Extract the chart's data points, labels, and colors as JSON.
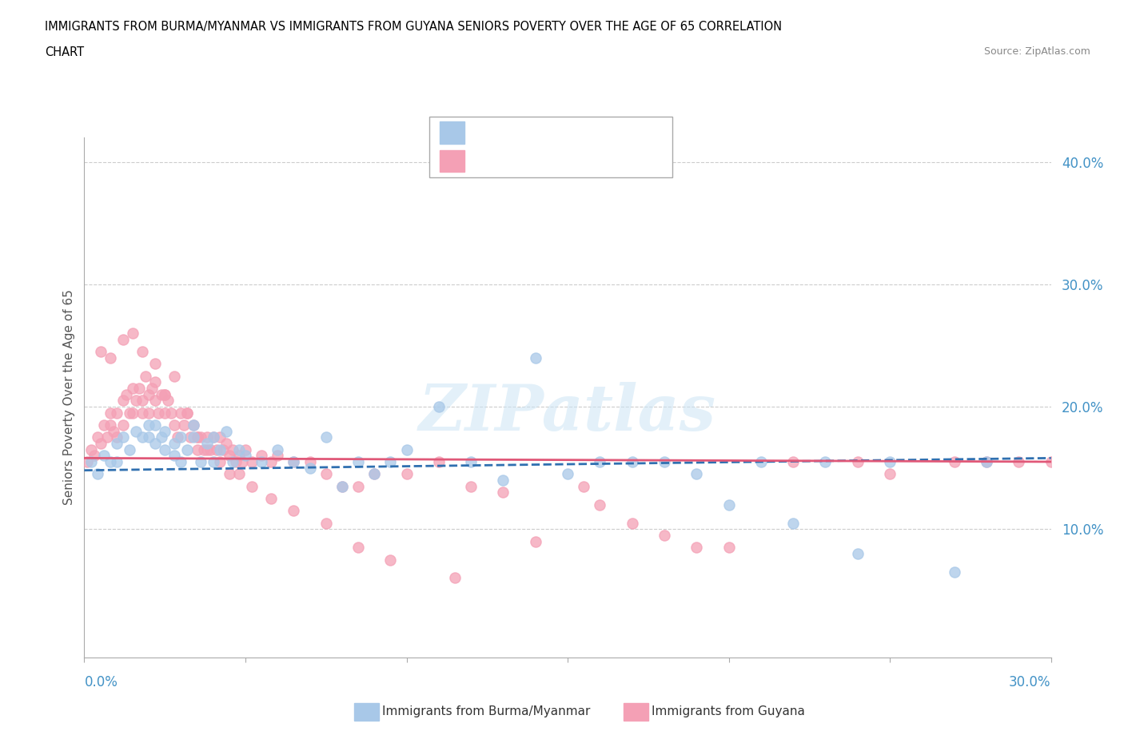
{
  "title_line1": "IMMIGRANTS FROM BURMA/MYANMAR VS IMMIGRANTS FROM GUYANA SENIORS POVERTY OVER THE AGE OF 65 CORRELATION",
  "title_line2": "CHART",
  "source": "Source: ZipAtlas.com",
  "ylabel": "Seniors Poverty Over the Age of 65",
  "color_blue": "#a8c8e8",
  "color_pink": "#f4a0b5",
  "trend_blue": "#3070b0",
  "trend_pink": "#e05878",
  "watermark": "ZIPatlas",
  "xlim": [
    0.0,
    0.3
  ],
  "ylim": [
    -0.005,
    0.42
  ],
  "scatter_blue_x": [
    0.002,
    0.004,
    0.006,
    0.008,
    0.01,
    0.01,
    0.012,
    0.014,
    0.016,
    0.018,
    0.02,
    0.02,
    0.022,
    0.022,
    0.024,
    0.025,
    0.025,
    0.028,
    0.028,
    0.03,
    0.03,
    0.032,
    0.034,
    0.034,
    0.036,
    0.038,
    0.04,
    0.04,
    0.042,
    0.044,
    0.046,
    0.048,
    0.05,
    0.055,
    0.06,
    0.065,
    0.07,
    0.075,
    0.08,
    0.085,
    0.09,
    0.095,
    0.1,
    0.11,
    0.12,
    0.13,
    0.14,
    0.15,
    0.16,
    0.17,
    0.18,
    0.19,
    0.2,
    0.21,
    0.22,
    0.23,
    0.24,
    0.25,
    0.27,
    0.28
  ],
  "scatter_blue_y": [
    0.155,
    0.145,
    0.16,
    0.155,
    0.17,
    0.155,
    0.175,
    0.165,
    0.18,
    0.175,
    0.175,
    0.185,
    0.17,
    0.185,
    0.175,
    0.165,
    0.18,
    0.16,
    0.17,
    0.155,
    0.175,
    0.165,
    0.175,
    0.185,
    0.155,
    0.17,
    0.155,
    0.175,
    0.165,
    0.18,
    0.155,
    0.165,
    0.16,
    0.155,
    0.165,
    0.155,
    0.15,
    0.175,
    0.135,
    0.155,
    0.145,
    0.155,
    0.165,
    0.2,
    0.155,
    0.14,
    0.24,
    0.145,
    0.155,
    0.155,
    0.155,
    0.145,
    0.12,
    0.155,
    0.105,
    0.155,
    0.08,
    0.155,
    0.065,
    0.155
  ],
  "scatter_pink_x": [
    0.001,
    0.002,
    0.003,
    0.004,
    0.005,
    0.006,
    0.007,
    0.008,
    0.008,
    0.009,
    0.01,
    0.01,
    0.012,
    0.012,
    0.013,
    0.014,
    0.015,
    0.015,
    0.016,
    0.017,
    0.018,
    0.018,
    0.019,
    0.02,
    0.02,
    0.021,
    0.022,
    0.022,
    0.023,
    0.024,
    0.025,
    0.025,
    0.026,
    0.027,
    0.028,
    0.029,
    0.03,
    0.031,
    0.032,
    0.033,
    0.034,
    0.035,
    0.035,
    0.036,
    0.037,
    0.038,
    0.039,
    0.04,
    0.041,
    0.042,
    0.043,
    0.044,
    0.045,
    0.046,
    0.047,
    0.048,
    0.049,
    0.05,
    0.052,
    0.055,
    0.058,
    0.06,
    0.065,
    0.07,
    0.075,
    0.08,
    0.085,
    0.09,
    0.1,
    0.11,
    0.12,
    0.13,
    0.14,
    0.155,
    0.16,
    0.17,
    0.18,
    0.19,
    0.2,
    0.22,
    0.24,
    0.25,
    0.27,
    0.28,
    0.29,
    0.3,
    0.005,
    0.008,
    0.012,
    0.015,
    0.018,
    0.022,
    0.025,
    0.028,
    0.032,
    0.035,
    0.038,
    0.042,
    0.045,
    0.048,
    0.052,
    0.058,
    0.065,
    0.075,
    0.085,
    0.095,
    0.115
  ],
  "scatter_pink_y": [
    0.155,
    0.165,
    0.16,
    0.175,
    0.17,
    0.185,
    0.175,
    0.195,
    0.185,
    0.18,
    0.195,
    0.175,
    0.205,
    0.185,
    0.21,
    0.195,
    0.215,
    0.195,
    0.205,
    0.215,
    0.195,
    0.205,
    0.225,
    0.21,
    0.195,
    0.215,
    0.205,
    0.22,
    0.195,
    0.21,
    0.195,
    0.21,
    0.205,
    0.195,
    0.185,
    0.175,
    0.195,
    0.185,
    0.195,
    0.175,
    0.185,
    0.175,
    0.165,
    0.175,
    0.165,
    0.175,
    0.165,
    0.175,
    0.165,
    0.175,
    0.165,
    0.17,
    0.16,
    0.165,
    0.155,
    0.16,
    0.155,
    0.165,
    0.155,
    0.16,
    0.155,
    0.16,
    0.155,
    0.155,
    0.145,
    0.135,
    0.135,
    0.145,
    0.145,
    0.155,
    0.135,
    0.13,
    0.09,
    0.135,
    0.12,
    0.105,
    0.095,
    0.085,
    0.085,
    0.155,
    0.155,
    0.145,
    0.155,
    0.155,
    0.155,
    0.155,
    0.245,
    0.24,
    0.255,
    0.26,
    0.245,
    0.235,
    0.21,
    0.225,
    0.195,
    0.175,
    0.165,
    0.155,
    0.145,
    0.145,
    0.135,
    0.125,
    0.115,
    0.105,
    0.085,
    0.075,
    0.06
  ],
  "trend_blue_x0": 0.0,
  "trend_blue_x1": 0.3,
  "trend_blue_y0": 0.148,
  "trend_blue_y1": 0.158,
  "trend_pink_x0": 0.0,
  "trend_pink_x1": 0.3,
  "trend_pink_y0": 0.158,
  "trend_pink_y1": 0.155
}
